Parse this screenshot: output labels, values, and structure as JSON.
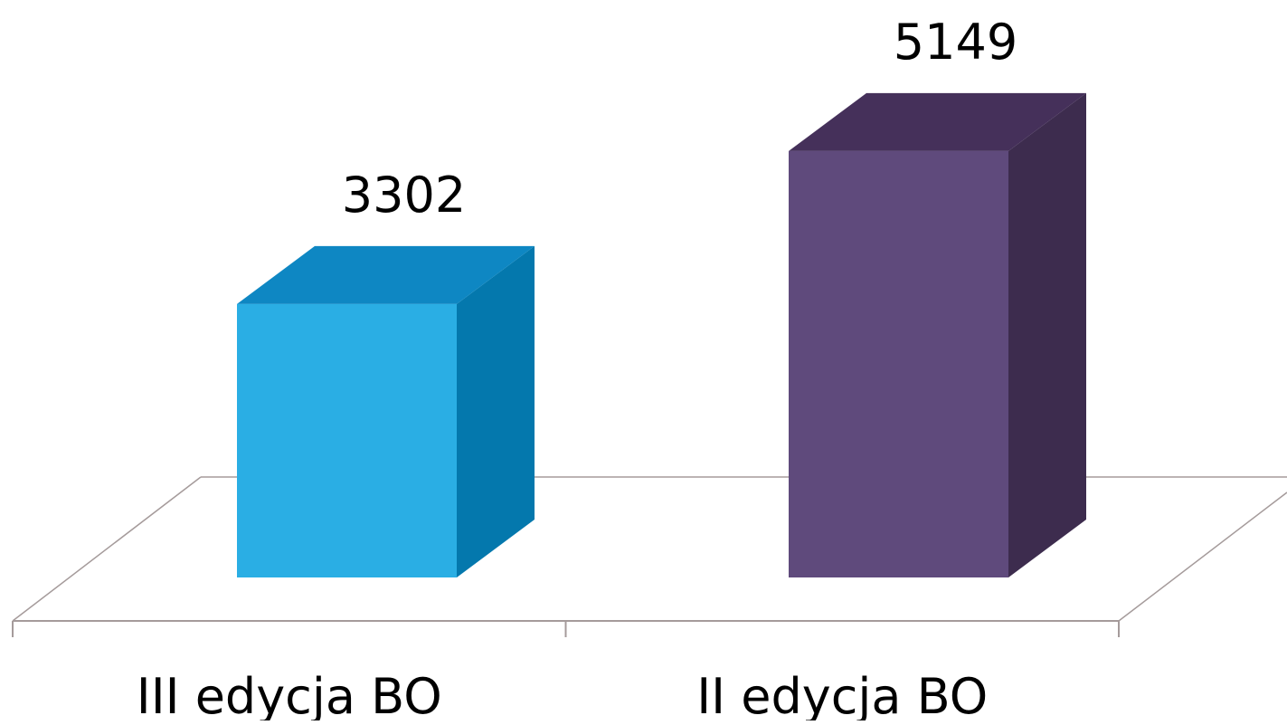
{
  "chart_data": {
    "type": "bar",
    "style": "3d-column",
    "categories": [
      "III edycja BO",
      "II edycja BO"
    ],
    "values": [
      3302,
      5149
    ],
    "data_labels": [
      "3302",
      "5149"
    ],
    "title": "",
    "xlabel": "",
    "ylabel": "",
    "ylim": [
      0,
      6000
    ],
    "grid": false,
    "legend": "none",
    "colors": [
      {
        "front": "#2aaee4",
        "side": "#0478ad",
        "top": "#0e87c3"
      },
      {
        "front": "#5f4a7c",
        "side": "#3d2c4e",
        "top": "#45305a"
      }
    ],
    "axis_color": "#a59b9b"
  }
}
